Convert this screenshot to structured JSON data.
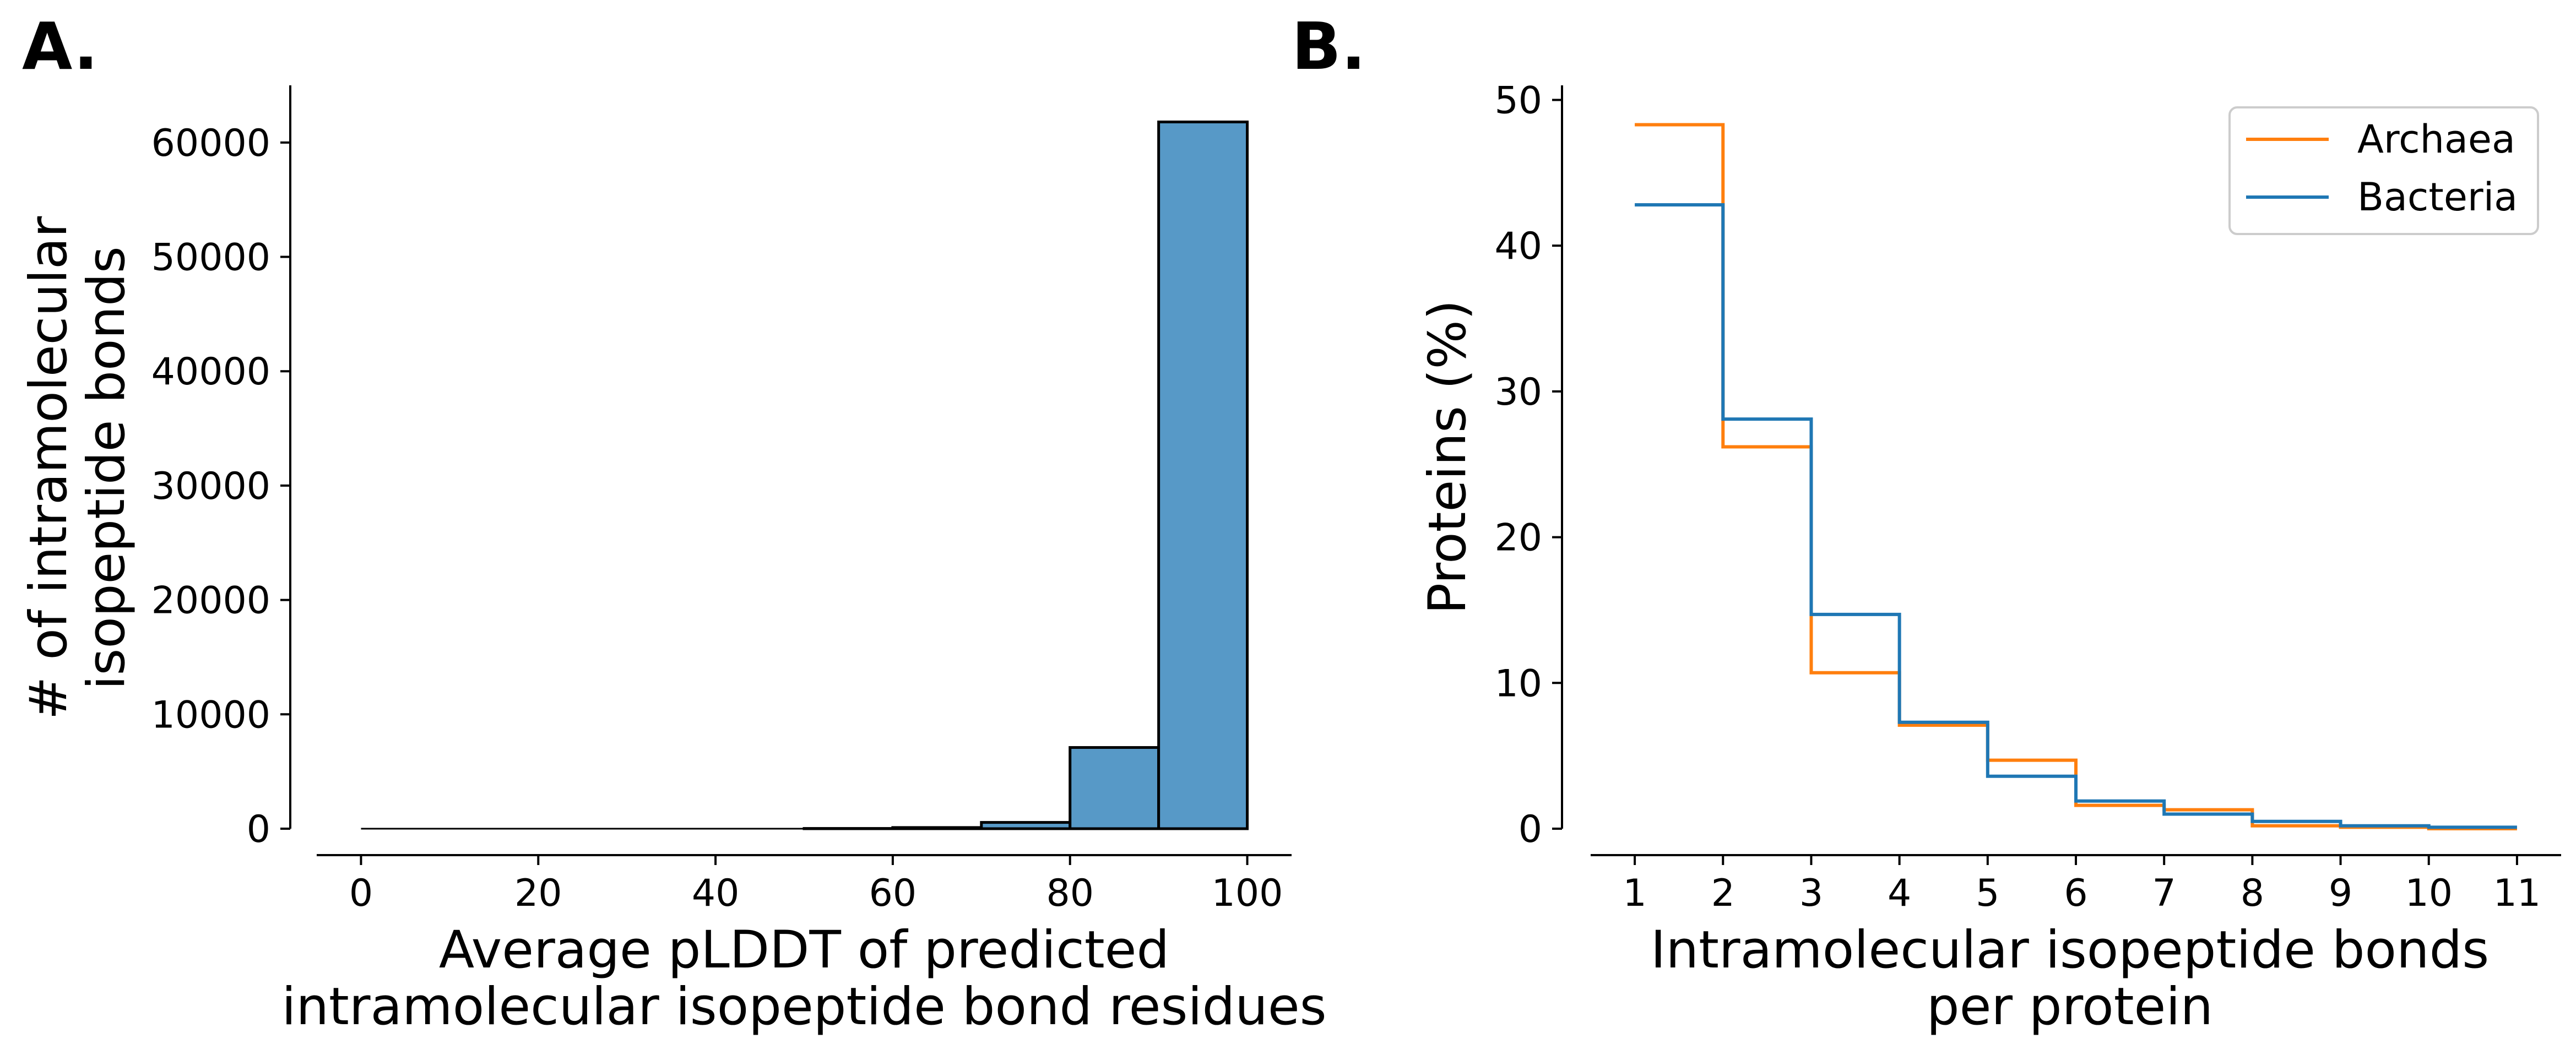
{
  "chart_data": [
    {
      "panel_label": "A.",
      "type": "bar",
      "subtype": "histogram",
      "xlabel": [
        "Average pLDDT of predicted",
        "intramolecular isopeptide bond residues"
      ],
      "ylabel": [
        "# of intramolecular",
        "isopeptide bonds"
      ],
      "xlim": [
        -5,
        105
      ],
      "ylim": [
        0,
        65000
      ],
      "xticks": [
        0,
        20,
        40,
        60,
        80,
        100
      ],
      "yticks": [
        0,
        10000,
        20000,
        30000,
        40000,
        50000,
        60000
      ],
      "bins": [
        {
          "x0": 0,
          "x1": 10,
          "value": 0
        },
        {
          "x0": 10,
          "x1": 20,
          "value": 0
        },
        {
          "x0": 20,
          "x1": 30,
          "value": 0
        },
        {
          "x0": 30,
          "x1": 40,
          "value": 0
        },
        {
          "x0": 40,
          "x1": 50,
          "value": 0
        },
        {
          "x0": 50,
          "x1": 60,
          "value": 20
        },
        {
          "x0": 60,
          "x1": 70,
          "value": 100
        },
        {
          "x0": 70,
          "x1": 80,
          "value": 550
        },
        {
          "x0": 80,
          "x1": 90,
          "value": 7100
        },
        {
          "x0": 90,
          "x1": 100,
          "value": 61800
        }
      ],
      "bar_color": "#5799c7",
      "grid": false
    },
    {
      "panel_label": "B.",
      "type": "line",
      "subtype": "step",
      "xlabel": [
        "Intramolecular isopeptide bonds",
        "per protein"
      ],
      "ylabel": [
        "Proteins (%)"
      ],
      "xlim": [
        0.5,
        11.5
      ],
      "ylim": [
        0,
        51
      ],
      "xticks": [
        1,
        2,
        3,
        4,
        5,
        6,
        7,
        8,
        9,
        10,
        11
      ],
      "yticks": [
        0,
        10,
        20,
        30,
        40,
        50
      ],
      "bin_edges": [
        1,
        2,
        3,
        4,
        5,
        6,
        7,
        8,
        9,
        10,
        11
      ],
      "series": [
        {
          "name": "Archaea",
          "color": "#ff7f0e",
          "values": [
            48.3,
            26.2,
            10.7,
            7.1,
            4.7,
            1.6,
            1.3,
            0.2,
            0.1,
            0.0
          ]
        },
        {
          "name": "Bacteria",
          "color": "#1f77b4",
          "values": [
            42.8,
            28.1,
            14.7,
            7.3,
            3.6,
            1.9,
            1.0,
            0.5,
            0.2,
            0.1
          ]
        }
      ],
      "legend_position": "top-right",
      "grid": false
    }
  ]
}
